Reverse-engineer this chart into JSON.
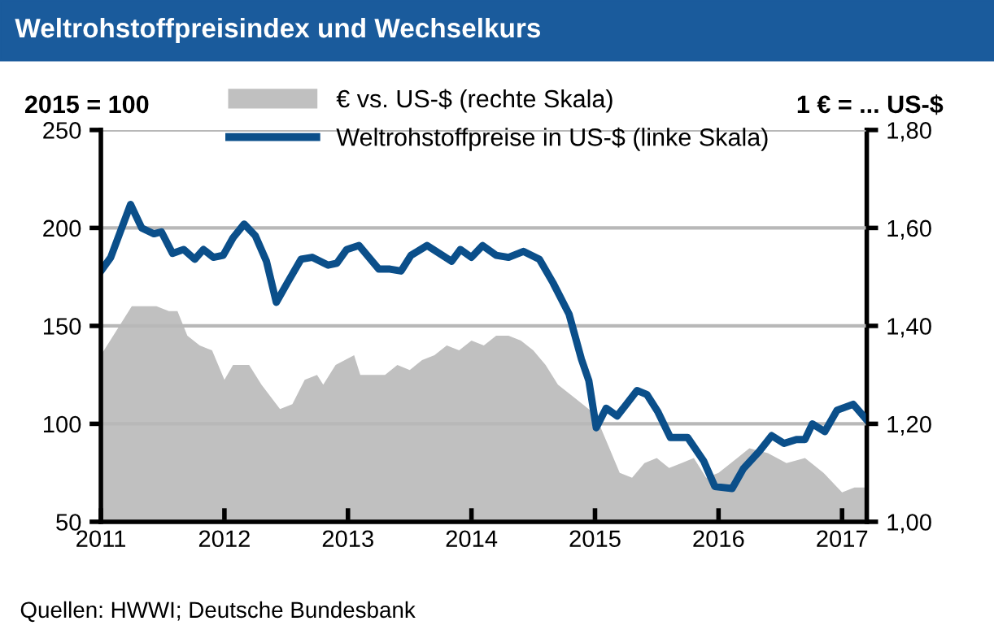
{
  "chart_data": {
    "type": "line",
    "title": "Weltrohstoffpreisindex und Wechselkurs",
    "ylabel": "2015 = 100",
    "y2label": "1 € = ... US-$",
    "annotations": [
      "Quellen: HWWI; Deutsche Bundesbank"
    ],
    "xlim": [
      2011,
      2017.2
    ],
    "xticks": [
      2011,
      2012,
      2013,
      2014,
      2015,
      2016,
      2017
    ],
    "ylim": [
      50,
      250
    ],
    "yticks": [
      50,
      100,
      150,
      200,
      250
    ],
    "y2lim": [
      1.0,
      1.8
    ],
    "y2ticks": [
      {
        "value": 1.0,
        "label": "1,00"
      },
      {
        "value": 1.2,
        "label": "1,20"
      },
      {
        "value": 1.4,
        "label": "1,40"
      },
      {
        "value": 1.6,
        "label": "1,60"
      },
      {
        "value": 1.8,
        "label": "1,80"
      }
    ],
    "grid": "y",
    "legend": "top",
    "series": [
      {
        "name": "€ vs. US-$ (rechte Skala)",
        "type": "area",
        "axis": "y2",
        "color": "#c0c0c0",
        "x": [
          2011.0,
          2011.1,
          2011.25,
          2011.35,
          2011.45,
          2011.55,
          2011.62,
          2011.7,
          2011.8,
          2011.9,
          2012.0,
          2012.07,
          2012.2,
          2012.3,
          2012.45,
          2012.55,
          2012.65,
          2012.75,
          2012.8,
          2012.9,
          2013.05,
          2013.1,
          2013.2,
          2013.3,
          2013.4,
          2013.5,
          2013.6,
          2013.7,
          2013.8,
          2013.9,
          2014.0,
          2014.1,
          2014.2,
          2014.3,
          2014.4,
          2014.5,
          2014.6,
          2014.7,
          2014.85,
          2015.0,
          2015.1,
          2015.2,
          2015.3,
          2015.4,
          2015.5,
          2015.6,
          2015.7,
          2015.8,
          2015.9,
          2016.0,
          2016.1,
          2016.25,
          2016.4,
          2016.55,
          2016.7,
          2016.85,
          2017.0,
          2017.1,
          2017.2
        ],
        "values": [
          1.34,
          1.38,
          1.44,
          1.44,
          1.44,
          1.43,
          1.43,
          1.38,
          1.36,
          1.35,
          1.29,
          1.32,
          1.32,
          1.28,
          1.23,
          1.24,
          1.29,
          1.3,
          1.28,
          1.32,
          1.34,
          1.3,
          1.3,
          1.3,
          1.32,
          1.31,
          1.33,
          1.34,
          1.36,
          1.35,
          1.37,
          1.36,
          1.38,
          1.38,
          1.37,
          1.35,
          1.32,
          1.28,
          1.25,
          1.22,
          1.16,
          1.1,
          1.09,
          1.12,
          1.13,
          1.11,
          1.12,
          1.13,
          1.09,
          1.1,
          1.12,
          1.15,
          1.14,
          1.12,
          1.13,
          1.1,
          1.06,
          1.07,
          1.07
        ]
      },
      {
        "name": "Weltrohstoffpreise in US-$ (linke Skala)",
        "color": "#0b4f8a",
        "x": [
          2011.0,
          2011.08,
          2011.24,
          2011.33,
          2011.43,
          2011.49,
          2011.58,
          2011.67,
          2011.76,
          2011.83,
          2011.91,
          2011.99,
          2012.07,
          2012.16,
          2012.25,
          2012.34,
          2012.42,
          2012.51,
          2012.62,
          2012.71,
          2012.84,
          2012.91,
          2012.99,
          2013.09,
          2013.17,
          2013.25,
          2013.34,
          2013.43,
          2013.51,
          2013.64,
          2013.74,
          2013.84,
          2013.91,
          2014.0,
          2014.09,
          2014.2,
          2014.3,
          2014.42,
          2014.55,
          2014.66,
          2014.79,
          2014.89,
          2014.95,
          2015.01,
          2015.09,
          2015.18,
          2015.34,
          2015.42,
          2015.51,
          2015.61,
          2015.75,
          2015.88,
          2015.97,
          2016.11,
          2016.2,
          2016.33,
          2016.43,
          2016.53,
          2016.63,
          2016.7,
          2016.76,
          2016.86,
          2016.96,
          2017.09,
          2017.2
        ],
        "values": [
          178,
          185,
          212,
          200,
          197,
          198,
          187,
          189,
          184,
          189,
          185,
          186,
          195,
          202,
          196,
          183,
          162,
          172,
          184,
          185,
          181,
          182,
          189,
          191,
          185,
          179,
          179,
          178,
          186,
          191,
          187,
          183,
          189,
          185,
          191,
          186,
          185,
          188,
          184,
          172,
          156,
          133,
          122,
          98,
          108,
          104,
          117,
          115,
          106,
          93,
          93,
          81,
          68,
          67,
          77,
          86,
          94,
          90,
          92,
          92,
          100,
          96,
          107,
          110,
          102
        ]
      }
    ]
  }
}
